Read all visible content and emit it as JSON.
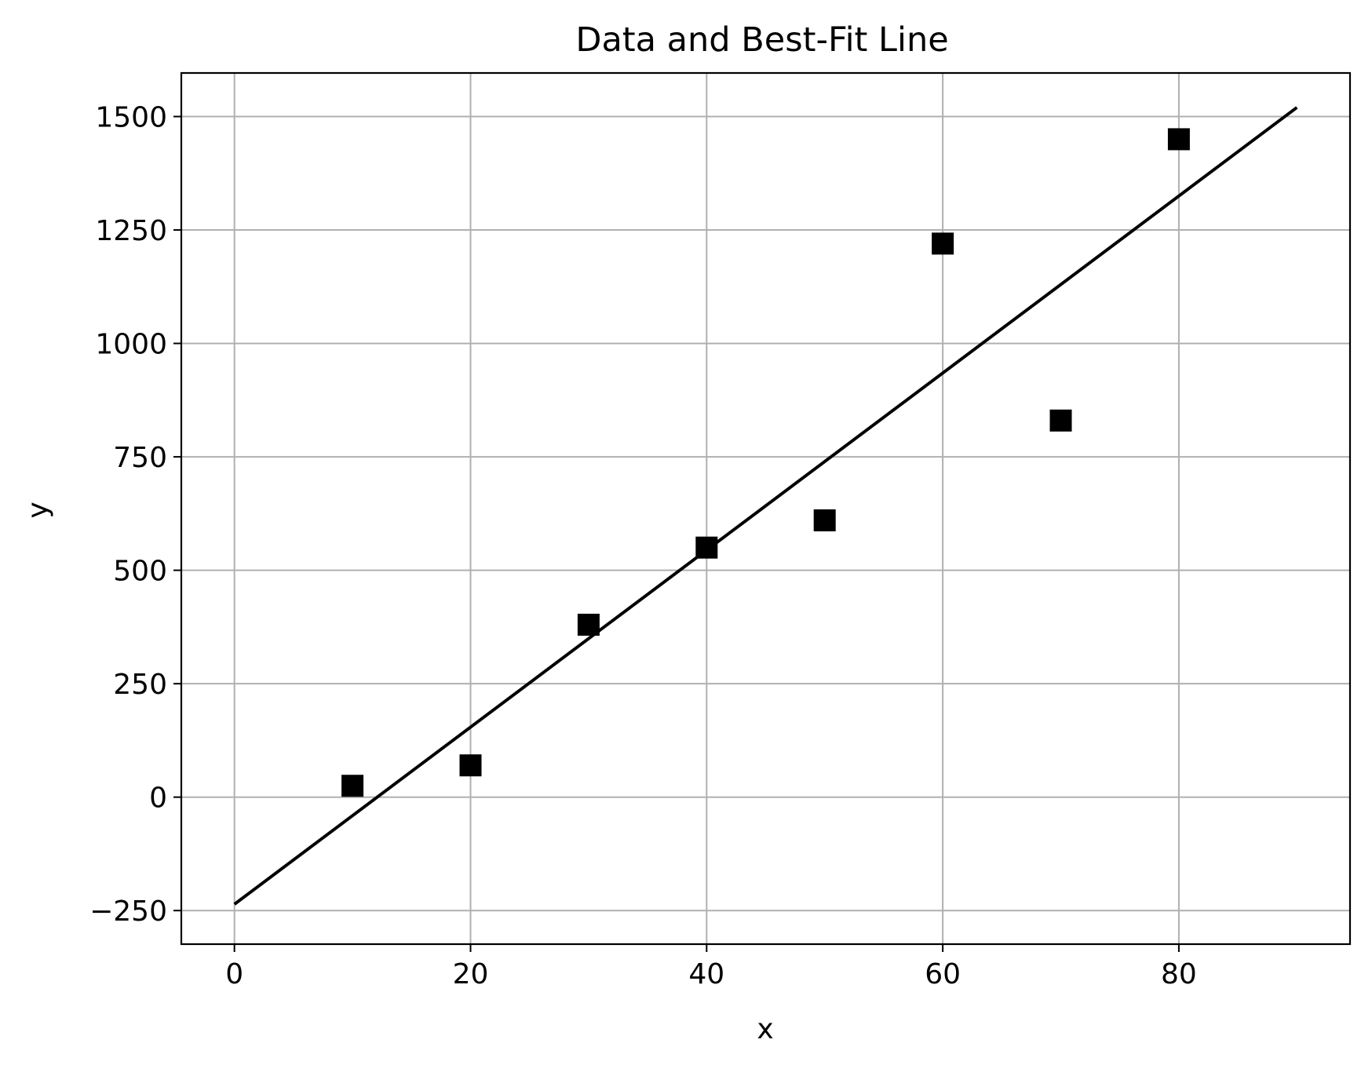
{
  "chart_data": {
    "type": "scatter",
    "title": "Data and Best-Fit Line",
    "xlabel": "x",
    "ylabel": "y",
    "xlim": [
      -4.5,
      94.5
    ],
    "ylim": [
      -324,
      1596
    ],
    "grid": true,
    "x_ticks": [
      0,
      20,
      40,
      60,
      80
    ],
    "x_tick_labels": [
      "0",
      "20",
      "40",
      "60",
      "80"
    ],
    "y_ticks": [
      -250,
      0,
      250,
      500,
      750,
      1000,
      1250,
      1500
    ],
    "y_tick_labels": [
      "−250",
      "0",
      "250",
      "500",
      "750",
      "1000",
      "1250",
      "1500"
    ],
    "series": [
      {
        "kind": "points",
        "marker": "square",
        "color": "#000000",
        "x": [
          10,
          20,
          30,
          40,
          50,
          60,
          70,
          80
        ],
        "y": [
          25,
          70,
          380,
          550,
          610,
          1220,
          830,
          1450
        ]
      },
      {
        "kind": "line",
        "color": "#000000",
        "x": [
          0,
          90
        ],
        "y": [
          -236,
          1520
        ]
      }
    ]
  }
}
